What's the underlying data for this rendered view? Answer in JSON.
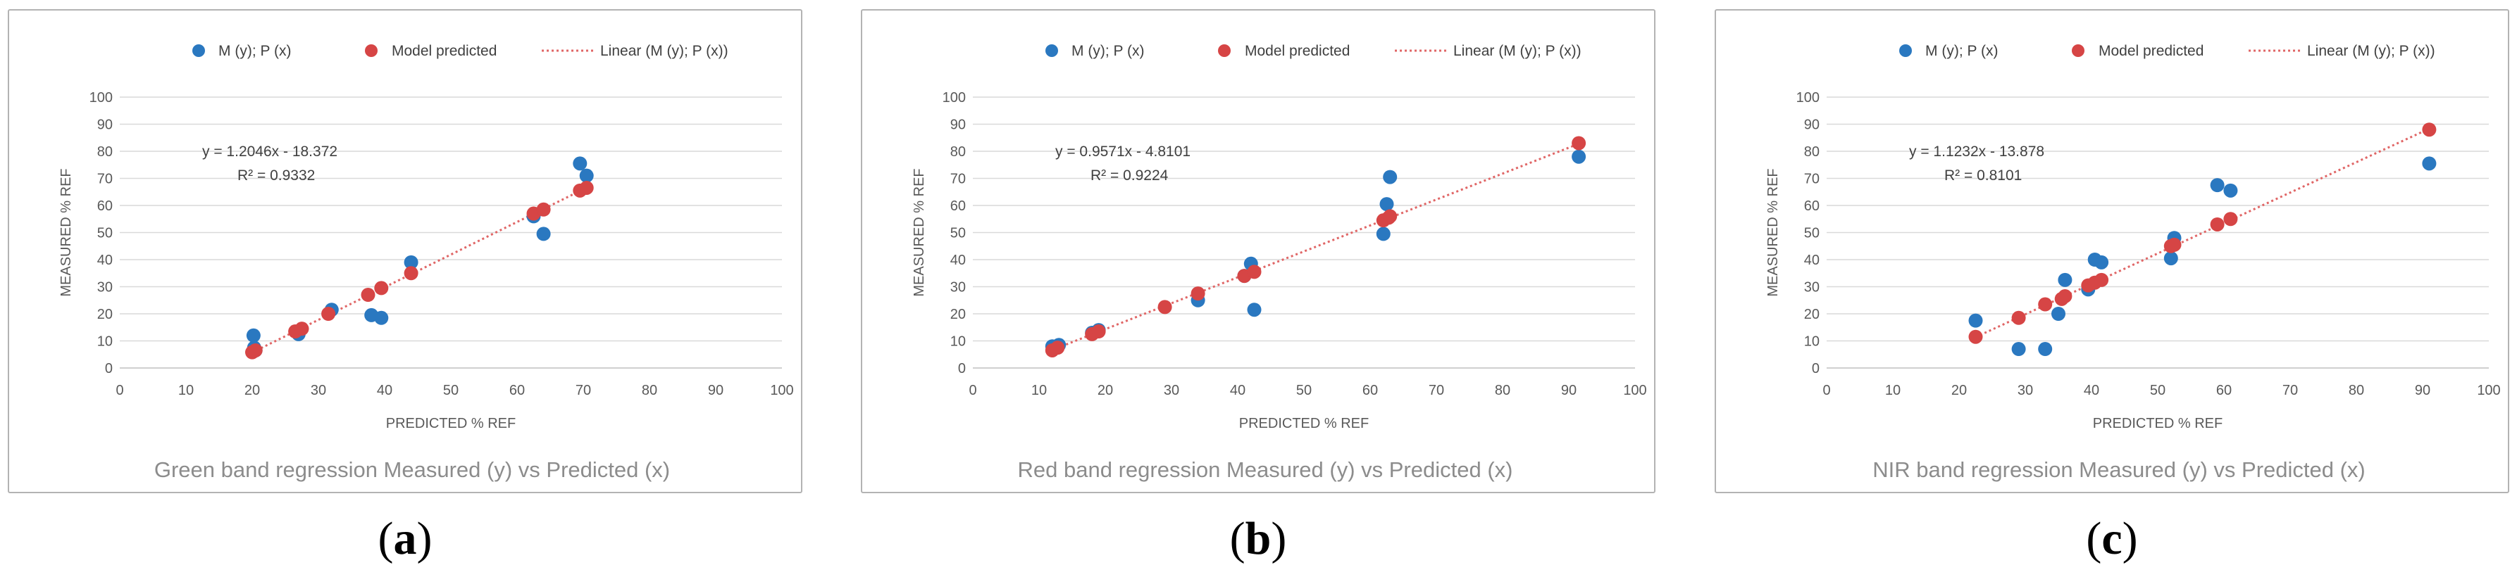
{
  "colors": {
    "measured": "#2a78c0",
    "predicted": "#d64545",
    "trend": "#e06666"
  },
  "chart_data": [
    {
      "type": "scatter",
      "label": "a",
      "caption": "Green band regression Measured (y) vs Predicted (x)",
      "xlabel": "PREDICTED % REF",
      "ylabel": "MEASURED % REF",
      "xlim": [
        0,
        100
      ],
      "ylim": [
        0,
        100
      ],
      "xticks": [
        0,
        10,
        20,
        30,
        40,
        50,
        60,
        70,
        80,
        90,
        100
      ],
      "yticks": [
        0,
        10,
        20,
        30,
        40,
        50,
        60,
        70,
        80,
        90,
        100
      ],
      "legend": [
        "M (y); P (x)",
        "Model predicted",
        "Linear (M (y); P (x))"
      ],
      "equation": "y = 1.2046x - 18.372",
      "r2": "R² = 0.9332",
      "trend": {
        "slope": 1.2046,
        "intercept": -18.372,
        "x_range": [
          20,
          70.5
        ]
      },
      "series": [
        {
          "name": "M (y); P (x)",
          "points": [
            [
              20.2,
              12
            ],
            [
              20.3,
              7.5
            ],
            [
              20.5,
              6.5
            ],
            [
              27,
              12.5
            ],
            [
              32,
              21.5
            ],
            [
              38,
              19.5
            ],
            [
              39.5,
              18.5
            ],
            [
              44,
              39
            ],
            [
              62.5,
              56
            ],
            [
              64,
              49.5
            ],
            [
              69.5,
              75.5
            ],
            [
              70.5,
              71
            ]
          ]
        },
        {
          "name": "Model predicted",
          "points": [
            [
              20,
              5.8
            ],
            [
              20.5,
              6.5
            ],
            [
              26.5,
              13.5
            ],
            [
              27.5,
              14.5
            ],
            [
              31.5,
              20
            ],
            [
              37.5,
              27
            ],
            [
              39.5,
              29.5
            ],
            [
              44,
              35
            ],
            [
              62.5,
              57
            ],
            [
              64,
              58.5
            ],
            [
              69.5,
              65.5
            ],
            [
              70.5,
              66.5
            ]
          ]
        }
      ]
    },
    {
      "type": "scatter",
      "label": "b",
      "caption": "Red band regression Measured (y) vs Predicted (x)",
      "xlabel": "PREDICTED % REF",
      "ylabel": "MEASURED % REF",
      "xlim": [
        0,
        100
      ],
      "ylim": [
        0,
        100
      ],
      "xticks": [
        0,
        10,
        20,
        30,
        40,
        50,
        60,
        70,
        80,
        90,
        100
      ],
      "yticks": [
        0,
        10,
        20,
        30,
        40,
        50,
        60,
        70,
        80,
        90,
        100
      ],
      "legend": [
        "M (y); P (x)",
        "Model predicted",
        "Linear (M (y); P (x))"
      ],
      "equation": "y = 0.9571x - 4.8101",
      "r2": "R² = 0.9224",
      "trend": {
        "slope": 0.9571,
        "intercept": -4.8101,
        "x_range": [
          12,
          91.5
        ]
      },
      "series": [
        {
          "name": "M (y); P (x)",
          "points": [
            [
              12,
              8
            ],
            [
              13,
              8.5
            ],
            [
              18,
              13
            ],
            [
              19,
              14
            ],
            [
              34,
              25
            ],
            [
              41,
              34
            ],
            [
              42,
              38.5
            ],
            [
              42.5,
              21.5
            ],
            [
              62,
              49.5
            ],
            [
              62.5,
              60.5
            ],
            [
              63,
              70.5
            ],
            [
              91.5,
              78
            ]
          ]
        },
        {
          "name": "Model predicted",
          "points": [
            [
              12,
              6.5
            ],
            [
              12.8,
              7.5
            ],
            [
              18,
              12.5
            ],
            [
              19,
              13.5
            ],
            [
              29,
              22.5
            ],
            [
              34,
              27.5
            ],
            [
              41,
              34
            ],
            [
              42.5,
              35.5
            ],
            [
              62,
              54.5
            ],
            [
              62.8,
              55.5
            ],
            [
              63,
              56
            ],
            [
              91.5,
              83
            ]
          ]
        }
      ]
    },
    {
      "type": "scatter",
      "label": "c",
      "caption": "NIR band regression Measured (y) vs Predicted (x)",
      "xlabel": "PREDICTED % REF",
      "ylabel": "MEASURED % REF",
      "xlim": [
        0,
        100
      ],
      "ylim": [
        0,
        100
      ],
      "xticks": [
        0,
        10,
        20,
        30,
        40,
        50,
        60,
        70,
        80,
        90,
        100
      ],
      "yticks": [
        0,
        10,
        20,
        30,
        40,
        50,
        60,
        70,
        80,
        90,
        100
      ],
      "legend": [
        "M (y); P (x)",
        "Model predicted",
        "Linear (M (y); P (x))"
      ],
      "equation": "y = 1.1232x - 13.878",
      "r2": "R² = 0.8101",
      "trend": {
        "slope": 1.1232,
        "intercept": -13.878,
        "x_range": [
          22.5,
          91
        ]
      },
      "series": [
        {
          "name": "M (y); P (x)",
          "points": [
            [
              22.5,
              17.5
            ],
            [
              29,
              7
            ],
            [
              33,
              7
            ],
            [
              35,
              20
            ],
            [
              36,
              32.5
            ],
            [
              39.5,
              29
            ],
            [
              40.5,
              40
            ],
            [
              41.5,
              39
            ],
            [
              52,
              40.5
            ],
            [
              52.5,
              48
            ],
            [
              59,
              67.5
            ],
            [
              61,
              65.5
            ],
            [
              91,
              75.5
            ]
          ]
        },
        {
          "name": "Model predicted",
          "points": [
            [
              22.5,
              11.5
            ],
            [
              29,
              18.5
            ],
            [
              33,
              23.5
            ],
            [
              35.5,
              25.5
            ],
            [
              36,
              26.5
            ],
            [
              39.5,
              30.5
            ],
            [
              40.5,
              31.5
            ],
            [
              41.5,
              32.5
            ],
            [
              52,
              45
            ],
            [
              52.5,
              45.5
            ],
            [
              59,
              53
            ],
            [
              61,
              55
            ],
            [
              91,
              88
            ]
          ]
        }
      ]
    }
  ]
}
